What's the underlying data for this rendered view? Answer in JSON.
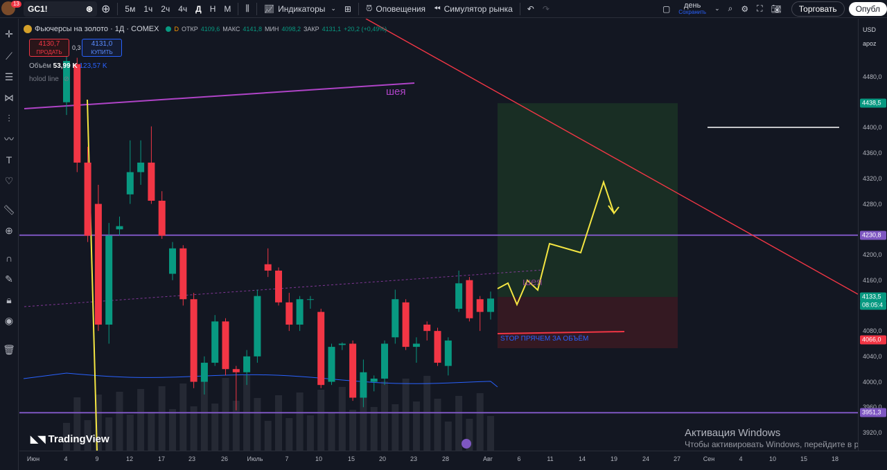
{
  "toolbar": {
    "notifications": "13",
    "symbol": "GC1!",
    "timeframes": [
      "5м",
      "1ч",
      "2ч",
      "4ч",
      "Д",
      "Н",
      "М"
    ],
    "active_timeframe": "Д",
    "indicators": "Индикаторы",
    "alerts": "Оповещения",
    "replay": "Симулятор рынка",
    "layout_name": "день",
    "layout_sub": "Сохранить",
    "trade": "Торговать",
    "publish": "Опубл"
  },
  "legend": {
    "title": "Фьючерсы на золото · 1Д · COMEX",
    "open_label": "ОТКР",
    "open": "4109,6",
    "high_label": "МАКС",
    "high": "4141,8",
    "low_label": "МИН",
    "low": "4098,2",
    "close_label": "ЗАКР",
    "close": "4131,1",
    "change": "+20,2 (+0,49%)",
    "sell_price": "4130,7",
    "sell_label": "ПРОДАТЬ",
    "spread": "0,3",
    "buy_price": "4131,0",
    "buy_label": "КУПИТЬ",
    "volume_label": "Объём",
    "volume": "53,99 K",
    "volume_ma": "123,57 K",
    "indicator_name": "holod line"
  },
  "annotations": {
    "neck_top": "шея",
    "neck_mid": "шея",
    "stop_text": "STOP ПРЯЧЕМ ЗА ОБЪЁМ"
  },
  "price_axis": {
    "currency": "USD",
    "unit": "apoz",
    "ticks": [
      "4480,0",
      "4400,0",
      "4360,0",
      "4320,0",
      "4280,0",
      "4200,0",
      "4160,0",
      "4120,0",
      "4080,0",
      "4040,0",
      "4000,0",
      "3960,0",
      "3920,0"
    ],
    "badges": [
      {
        "label": "4438,5",
        "color": "#089981"
      },
      {
        "label": "4230,8",
        "color": "#7e57c2"
      },
      {
        "label": "4133,5",
        "color": "#089981"
      },
      {
        "label": "08:05:4",
        "color": "#089981"
      },
      {
        "label": "4066,0",
        "color": "#f23645"
      },
      {
        "label": "3951,3",
        "color": "#7e57c2"
      }
    ]
  },
  "time_axis": {
    "labels": [
      "Июн",
      "4",
      "9",
      "12",
      "17",
      "23",
      "26",
      "Июль",
      "7",
      "10",
      "15",
      "20",
      "23",
      "28",
      "Авг",
      "6",
      "11",
      "14",
      "19",
      "24",
      "27",
      "Сен",
      "4",
      "10",
      "15",
      "18"
    ]
  },
  "chart_data": {
    "type": "candlestick",
    "title": "Фьючерсы на золото · 1Д · COMEX",
    "ylim": [
      3900,
      4520
    ],
    "candles": [
      {
        "o": 4440,
        "h": 4520,
        "l": 4420,
        "c": 4505
      },
      {
        "o": 4500,
        "h": 4510,
        "l": 4330,
        "c": 4345
      },
      {
        "o": 4345,
        "h": 4370,
        "l": 4220,
        "c": 4230
      },
      {
        "o": 4280,
        "h": 4310,
        "l": 4080,
        "c": 4090
      },
      {
        "o": 4090,
        "h": 4250,
        "l": 4060,
        "c": 4230
      },
      {
        "o": 4240,
        "h": 4260,
        "l": 4230,
        "c": 4245
      },
      {
        "o": 4295,
        "h": 4380,
        "l": 4280,
        "c": 4330
      },
      {
        "o": 4330,
        "h": 4380,
        "l": 4310,
        "c": 4345
      },
      {
        "o": 4345,
        "h": 4402,
        "l": 4280,
        "c": 4285
      },
      {
        "o": 4285,
        "h": 4300,
        "l": 4225,
        "c": 4230
      },
      {
        "o": 4170,
        "h": 4220,
        "l": 4160,
        "c": 4210
      },
      {
        "o": 4210,
        "h": 4215,
        "l": 4120,
        "c": 4130
      },
      {
        "o": 4130,
        "h": 4140,
        "l": 3990,
        "c": 4000
      },
      {
        "o": 4000,
        "h": 4040,
        "l": 3980,
        "c": 4030
      },
      {
        "o": 4030,
        "h": 4105,
        "l": 4025,
        "c": 4095
      },
      {
        "o": 4095,
        "h": 4100,
        "l": 4010,
        "c": 4020
      },
      {
        "o": 4020,
        "h": 4025,
        "l": 3955,
        "c": 4015
      },
      {
        "o": 4015,
        "h": 4050,
        "l": 3995,
        "c": 4040
      },
      {
        "o": 4040,
        "h": 4145,
        "l": 4030,
        "c": 4135
      },
      {
        "o": 4185,
        "h": 4210,
        "l": 4165,
        "c": 4175
      },
      {
        "o": 4175,
        "h": 4180,
        "l": 4120,
        "c": 4125
      },
      {
        "o": 4125,
        "h": 4140,
        "l": 4080,
        "c": 4090
      },
      {
        "o": 4090,
        "h": 4135,
        "l": 4080,
        "c": 4130
      },
      {
        "o": 4130,
        "h": 4135,
        "l": 4115,
        "c": 4130
      },
      {
        "o": 4110,
        "h": 4115,
        "l": 3990,
        "c": 3995
      },
      {
        "o": 4000,
        "h": 4060,
        "l": 3995,
        "c": 4055
      },
      {
        "o": 4058,
        "h": 4062,
        "l": 4050,
        "c": 4060
      },
      {
        "o": 4060,
        "h": 4065,
        "l": 3970,
        "c": 3975
      },
      {
        "o": 3975,
        "h": 4035,
        "l": 3960,
        "c": 4015
      },
      {
        "o": 4000,
        "h": 4010,
        "l": 3985,
        "c": 4005
      },
      {
        "o": 4005,
        "h": 4065,
        "l": 3995,
        "c": 4060
      },
      {
        "o": 4070,
        "h": 4145,
        "l": 4060,
        "c": 4130
      },
      {
        "o": 4125,
        "h": 4130,
        "l": 4050,
        "c": 4055
      },
      {
        "o": 4055,
        "h": 4070,
        "l": 4030,
        "c": 4060
      },
      {
        "o": 4090,
        "h": 4095,
        "l": 4065,
        "c": 4080
      },
      {
        "o": 4080,
        "h": 4085,
        "l": 4025,
        "c": 4030
      },
      {
        "o": 4025,
        "h": 4070,
        "l": 4010,
        "c": 4065
      },
      {
        "o": 4115,
        "h": 4175,
        "l": 4110,
        "c": 4155
      },
      {
        "o": 4160,
        "h": 4165,
        "l": 4095,
        "c": 4100
      },
      {
        "o": 4130,
        "h": 4135,
        "l": 4080,
        "c": 4110
      },
      {
        "o": 4110,
        "h": 4142,
        "l": 4098,
        "c": 4131
      }
    ],
    "volume_ma_line": true,
    "levels": [
      4230.8,
      3951.3
    ],
    "long_position": {
      "entry": 4133.5,
      "target": 4438.5,
      "stop": 4066.0
    }
  }
}
